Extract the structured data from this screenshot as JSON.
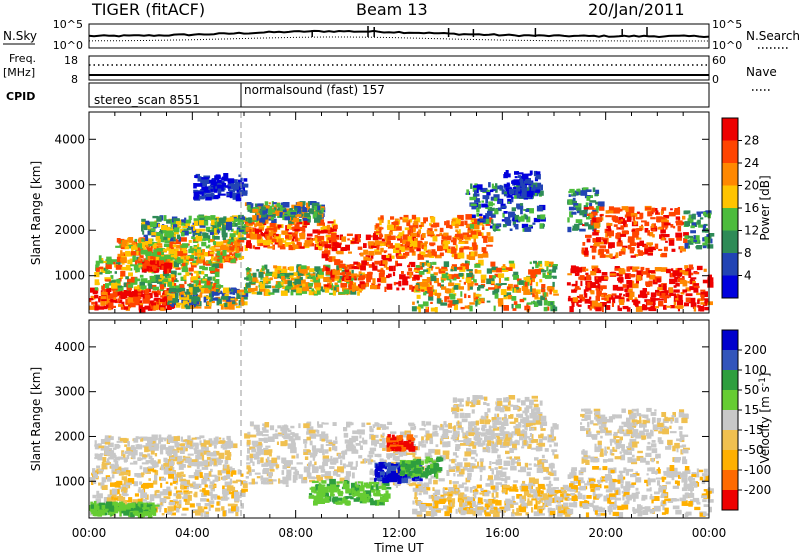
{
  "header": {
    "left": "TIGER (fitACF)",
    "center": "Beam 13",
    "right": "20/Jan/2011"
  },
  "strips": {
    "nsky_label": "N.Sky",
    "nsky_top": "10^5",
    "nsky_bottom": "10^0",
    "nsearch_label": "N.Search",
    "nsearch_top": "10^5",
    "nsearch_bottom": "10^0",
    "freq_label": "Freq.",
    "freq_unit": "[MHz]",
    "freq_top": "18",
    "freq_bottom": "8",
    "nave_label": "Nave",
    "nave_top": "60",
    "nave_bottom": "0",
    "cpid_label": "CPID",
    "cpid_modes": [
      {
        "name": "stereo_scan 8551",
        "start_hour": 0
      },
      {
        "name": "normalsound (fast) 157",
        "start_hour": 6
      }
    ]
  },
  "chart_data": [
    {
      "type": "heatmap",
      "name": "power",
      "ylabel": "Slant Range [km]",
      "xlabel": "",
      "x_range_hours": [
        0,
        24
      ],
      "ylim": [
        180,
        4600
      ],
      "yticks": [
        "1000",
        "2000",
        "3000",
        "4000"
      ],
      "xticks": [
        "00:00",
        "04:00",
        "08:00",
        "12:00",
        "16:00",
        "20:00",
        "00:00"
      ],
      "colorbar": {
        "label": "Power [dB]",
        "ticks": [
          "4",
          "8",
          "12",
          "16",
          "20",
          "24",
          "28"
        ],
        "colors": [
          "#0000dc",
          "#2244b4",
          "#2e8b57",
          "#4cbc3c",
          "#ffc400",
          "#ff8800",
          "#ff4400",
          "#ee0000"
        ]
      },
      "blobs": [
        {
          "t0": 0.0,
          "t1": 3.2,
          "r0": 250,
          "r1": 700,
          "c": [
            7,
            6,
            7,
            5
          ]
        },
        {
          "t0": 0.2,
          "t1": 5.0,
          "r0": 700,
          "r1": 1400,
          "c": [
            3,
            2,
            4,
            6,
            3
          ]
        },
        {
          "t0": 1.0,
          "t1": 5.8,
          "r0": 1300,
          "r1": 1800,
          "c": [
            4,
            5,
            3,
            6
          ]
        },
        {
          "t0": 2.0,
          "t1": 6.0,
          "r0": 1800,
          "r1": 2300,
          "c": [
            3,
            2,
            1,
            4
          ]
        },
        {
          "t0": 3.0,
          "t1": 6.0,
          "r0": 300,
          "r1": 700,
          "c": [
            2,
            5,
            1,
            4
          ]
        },
        {
          "t0": 6.0,
          "t1": 9.5,
          "r0": 1600,
          "r1": 2200,
          "c": [
            5,
            6,
            4,
            7
          ]
        },
        {
          "t0": 6.0,
          "t1": 9.0,
          "r0": 2200,
          "r1": 2600,
          "c": [
            3,
            2,
            5,
            1
          ]
        },
        {
          "t0": 6.0,
          "t1": 10.5,
          "r0": 600,
          "r1": 1200,
          "c": [
            2,
            4,
            3,
            5
          ]
        },
        {
          "t0": 9.0,
          "t1": 12.8,
          "r0": 700,
          "r1": 1900,
          "c": [
            6,
            7,
            7,
            5,
            6
          ]
        },
        {
          "t0": 11.0,
          "t1": 15.5,
          "r0": 1400,
          "r1": 2300,
          "c": [
            5,
            6,
            4,
            6
          ]
        },
        {
          "t0": 12.5,
          "t1": 18.0,
          "r0": 250,
          "r1": 1300,
          "c": [
            3,
            5,
            2,
            4,
            6
          ]
        },
        {
          "t0": 14.5,
          "t1": 17.5,
          "r0": 2000,
          "r1": 3000,
          "c": [
            1,
            2,
            0,
            3
          ]
        },
        {
          "t0": 16.0,
          "t1": 17.3,
          "r0": 2700,
          "r1": 3300,
          "c": [
            0,
            1,
            0
          ]
        },
        {
          "t0": 18.5,
          "t1": 19.8,
          "r0": 2000,
          "r1": 2900,
          "c": [
            2,
            1,
            3
          ]
        },
        {
          "t0": 19.0,
          "t1": 23.0,
          "r0": 1400,
          "r1": 2500,
          "c": [
            6,
            7,
            5,
            6
          ]
        },
        {
          "t0": 18.5,
          "t1": 24.0,
          "r0": 250,
          "r1": 1200,
          "c": [
            7,
            6,
            7,
            5,
            7
          ]
        },
        {
          "t0": 23.0,
          "t1": 24.0,
          "r0": 1600,
          "r1": 2400,
          "c": [
            3,
            1,
            2
          ]
        },
        {
          "t0": 4.0,
          "t1": 6.0,
          "r0": 2700,
          "r1": 3200,
          "c": [
            0,
            1
          ]
        },
        {
          "t0": 2.0,
          "t1": 3.0,
          "r0": 1100,
          "r1": 1300,
          "c": [
            7,
            6
          ]
        }
      ]
    },
    {
      "type": "heatmap",
      "name": "velocity",
      "ylabel": "Slant Range [km]",
      "xlabel": "Time UT",
      "x_range_hours": [
        0,
        24
      ],
      "ylim": [
        180,
        4600
      ],
      "yticks": [
        "1000",
        "2000",
        "3000",
        "4000"
      ],
      "xticks": [
        "00:00",
        "04:00",
        "08:00",
        "12:00",
        "16:00",
        "20:00",
        "00:00"
      ],
      "colorbar": {
        "label": "Velocity [m s",
        "label_sup": "-1",
        "ticks": [
          "-200",
          "-100",
          "-50",
          "-15",
          "15",
          "50",
          "100",
          "200"
        ],
        "colors": [
          "#ee0000",
          "#ff6a00",
          "#ffb000",
          "#f0c050",
          "#c8c8c8",
          "#66cc33",
          "#2e9e3e",
          "#3355bb",
          "#0000cc"
        ]
      },
      "blobs": [
        {
          "t0": 0.0,
          "t1": 6.0,
          "r0": 250,
          "r1": 1300,
          "c": [
            4,
            3,
            4,
            2
          ]
        },
        {
          "t0": 0.2,
          "t1": 5.5,
          "r0": 1300,
          "r1": 2000,
          "c": [
            4,
            4,
            3,
            4
          ]
        },
        {
          "t0": 6.0,
          "t1": 18.0,
          "r0": 900,
          "r1": 2300,
          "c": [
            4,
            4,
            3,
            4,
            4
          ]
        },
        {
          "t0": 8.5,
          "t1": 11.5,
          "r0": 500,
          "r1": 1000,
          "c": [
            5,
            6,
            5
          ]
        },
        {
          "t0": 11.0,
          "t1": 12.8,
          "r0": 1000,
          "r1": 1400,
          "c": [
            8,
            7,
            8
          ]
        },
        {
          "t0": 12.0,
          "t1": 13.5,
          "r0": 1100,
          "r1": 1500,
          "c": [
            6,
            5
          ]
        },
        {
          "t0": 12.5,
          "t1": 18.5,
          "r0": 250,
          "r1": 900,
          "c": [
            4,
            2,
            4,
            3
          ]
        },
        {
          "t0": 14.0,
          "t1": 17.5,
          "r0": 1800,
          "r1": 2900,
          "c": [
            4,
            4,
            3
          ]
        },
        {
          "t0": 18.5,
          "t1": 24.0,
          "r0": 250,
          "r1": 1300,
          "c": [
            4,
            4,
            2,
            4
          ]
        },
        {
          "t0": 19.0,
          "t1": 23.0,
          "r0": 1400,
          "r1": 2600,
          "c": [
            4,
            3,
            4
          ]
        },
        {
          "t0": 0.0,
          "t1": 2.5,
          "r0": 250,
          "r1": 500,
          "c": [
            5,
            6,
            5
          ]
        },
        {
          "t0": 11.5,
          "t1": 12.5,
          "r0": 1700,
          "r1": 2000,
          "c": [
            0,
            1
          ]
        }
      ]
    }
  ]
}
